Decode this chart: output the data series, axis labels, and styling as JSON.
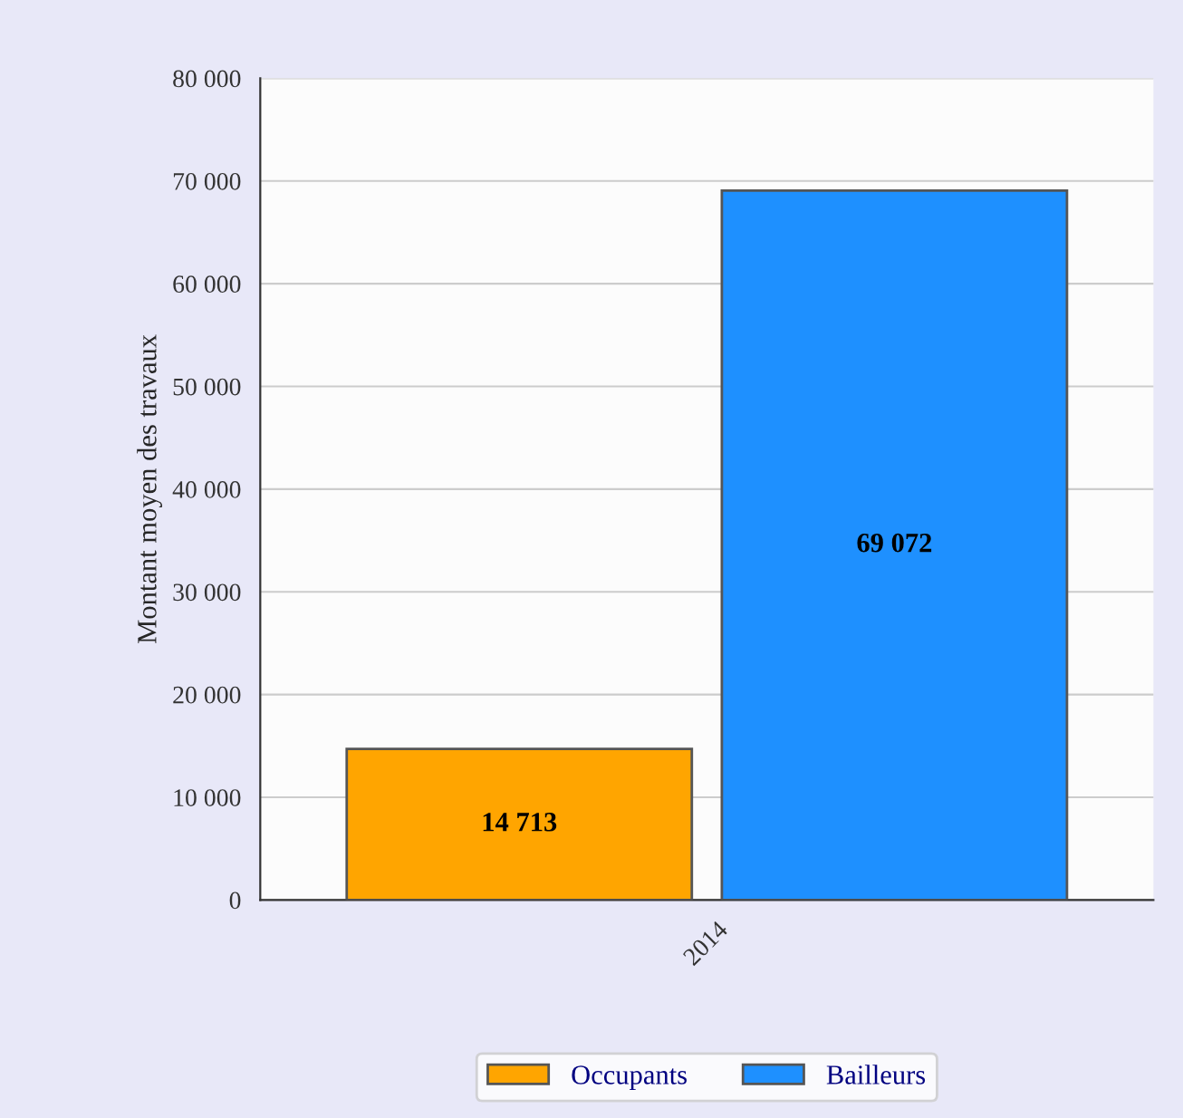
{
  "chart_data": {
    "type": "bar",
    "ylabel": "Montant moyen des travaux",
    "categories": [
      "2014"
    ],
    "series": [
      {
        "name": "Occupants",
        "color": "#ffa500",
        "values": [
          14713
        ],
        "value_labels": [
          "14 713"
        ]
      },
      {
        "name": "Bailleurs",
        "color": "#1e90ff",
        "values": [
          69072
        ],
        "value_labels": [
          "69 072"
        ]
      }
    ],
    "ylim": [
      0,
      80000
    ],
    "yticks": [
      0,
      {
        "value": 10000,
        "label": "10 000"
      },
      {
        "value": 20000,
        "label": "20 000"
      },
      {
        "value": 30000,
        "label": "30 000"
      },
      {
        "value": 40000,
        "label": "40 000"
      },
      {
        "value": 50000,
        "label": "50 000"
      },
      {
        "value": 60000,
        "label": "60 000"
      },
      {
        "value": 70000,
        "label": "70 000"
      },
      {
        "value": 80000,
        "label": "80 000"
      }
    ],
    "grid": "y",
    "legend": "bottom"
  }
}
